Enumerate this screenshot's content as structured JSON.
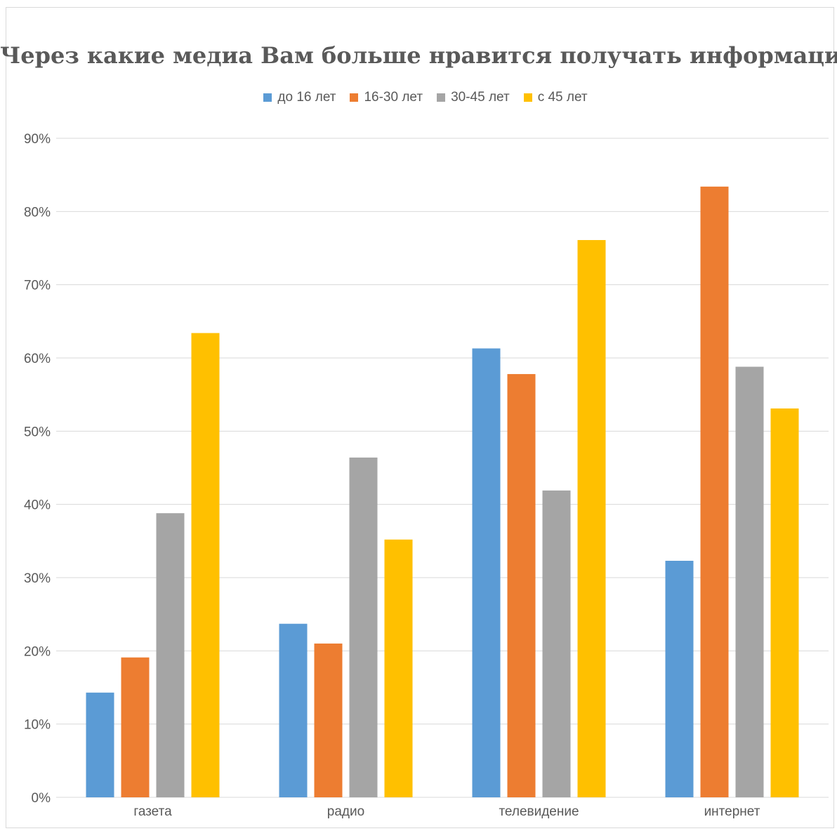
{
  "chart_data": {
    "type": "bar",
    "title": "Через какие медиа Вам больше нравится получать информацию?",
    "categories": [
      "газета",
      "радио",
      "телевидение",
      "интернет"
    ],
    "series": [
      {
        "name": "до 16 лет",
        "color": "#5b9bd5",
        "values": [
          14.3,
          23.7,
          61.3,
          32.3
        ]
      },
      {
        "name": "16-30 лет",
        "color": "#ed7d31",
        "values": [
          19.1,
          21.0,
          57.8,
          83.4
        ]
      },
      {
        "name": "30-45 лет",
        "color": "#a5a5a5",
        "values": [
          38.8,
          46.4,
          41.9,
          58.8
        ]
      },
      {
        "name": "с 45 лет",
        "color": "#ffc000",
        "values": [
          63.4,
          35.2,
          76.1,
          53.1
        ]
      }
    ],
    "ylim": [
      0,
      90
    ],
    "yticks": [
      "0%",
      "10%",
      "20%",
      "30%",
      "40%",
      "50%",
      "60%",
      "70%",
      "80%",
      "90%"
    ],
    "ylabel": "",
    "xlabel": "",
    "grid": true,
    "legend_position": "top"
  }
}
